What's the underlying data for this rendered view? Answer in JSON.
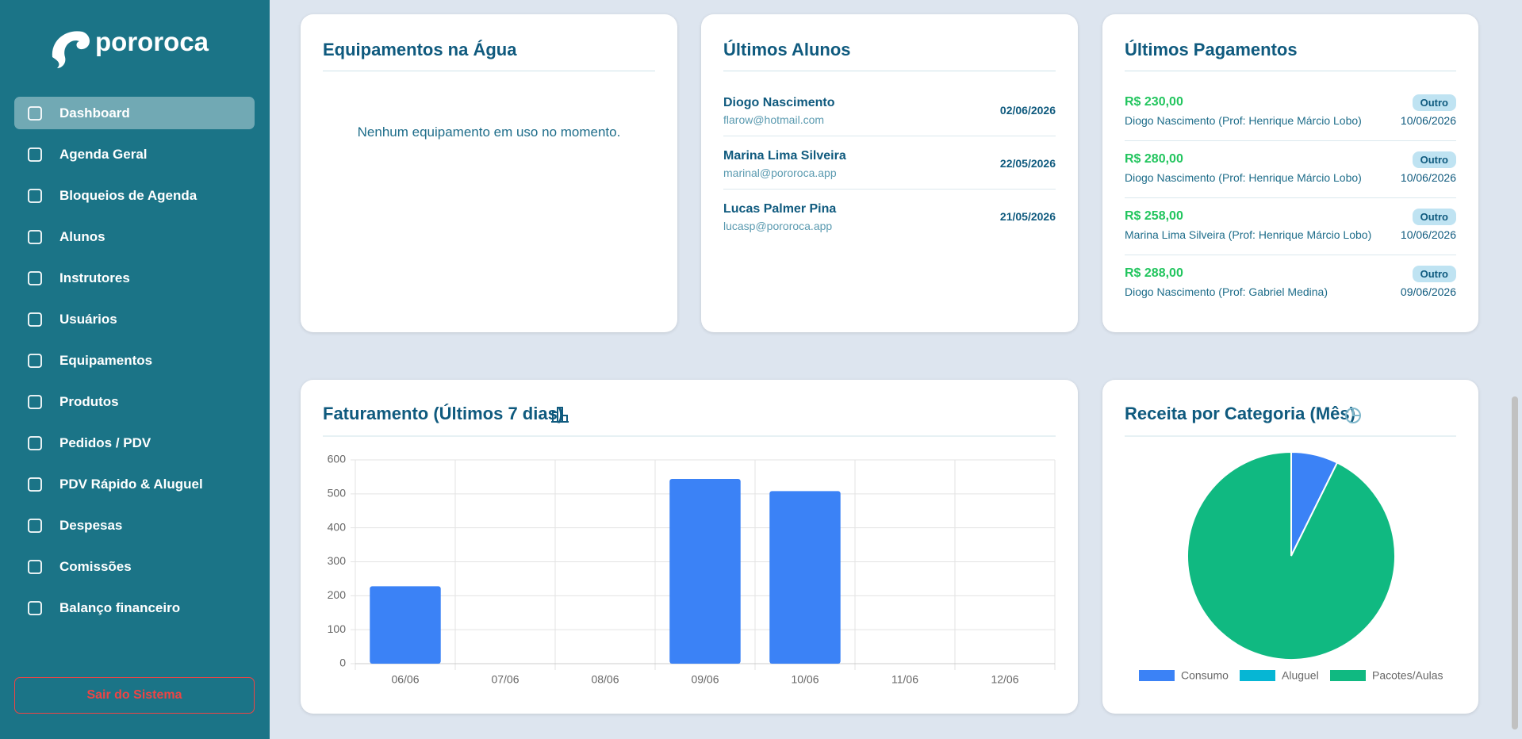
{
  "sidebar": {
    "brand": "pororoca",
    "menu": [
      "Dashboard",
      "Agenda Geral",
      "Bloqueios de Agenda",
      "Alunos",
      "Instrutores",
      "Usuários",
      "Equipamentos",
      "Produtos",
      "Pedidos / PDV",
      "PDV Rápido & Aluguel",
      "Despesas",
      "Comissões",
      "Balanço financeiro"
    ],
    "logout": "Sair do Sistema"
  },
  "equipment": {
    "title": "Equipamentos na Água",
    "empty": "Nenhum equipamento em uso no momento."
  },
  "students": {
    "title": "Últimos Alunos",
    "rows": [
      {
        "name": "Diogo Nascimento",
        "email": "flarow@hotmail.com",
        "date": "02/06/2026"
      },
      {
        "name": "Marina Lima Silveira",
        "email": "marinal@pororoca.app",
        "date": "22/05/2026"
      },
      {
        "name": "Lucas Palmer Pina",
        "email": "lucasp@pororoca.app",
        "date": "21/05/2026"
      }
    ]
  },
  "payments": {
    "title": "Últimos Pagamentos",
    "rows": [
      {
        "amount": "R$ 230,00",
        "tag": "Outro",
        "description": "Diogo Nascimento (Prof: Henrique Márcio Lobo)",
        "date": "10/06/2026"
      },
      {
        "amount": "R$ 280,00",
        "tag": "Outro",
        "description": "Diogo Nascimento (Prof: Henrique Márcio Lobo)",
        "date": "10/06/2026"
      },
      {
        "amount": "R$ 258,00",
        "tag": "Outro",
        "description": "Marina Lima Silveira (Prof: Henrique Márcio Lobo)",
        "date": "10/06/2026"
      },
      {
        "amount": "R$ 288,00",
        "tag": "Outro",
        "description": "Diogo Nascimento (Prof: Gabriel Medina)",
        "date": "09/06/2026"
      }
    ]
  },
  "chart_data": [
    {
      "type": "bar",
      "title": "Faturamento (Últimos 7 dias)",
      "categories": [
        "06/06",
        "07/06",
        "08/06",
        "09/06",
        "10/06",
        "11/06",
        "12/06"
      ],
      "values": [
        228,
        0,
        0,
        544,
        508,
        0,
        0
      ],
      "color": "#3b82f6",
      "ylim": [
        0,
        600
      ],
      "yticks": [
        0,
        100,
        200,
        300,
        400,
        500,
        600
      ],
      "grid": true
    },
    {
      "type": "pie",
      "title": "Receita por Categoria (Mês)",
      "categories": [
        "Consumo",
        "Aluguel",
        "Pacotes/Aulas"
      ],
      "values": [
        7.3,
        0,
        92.7
      ],
      "colors": [
        "#3b82f6",
        "#06b6d4",
        "#10b981"
      ]
    }
  ]
}
